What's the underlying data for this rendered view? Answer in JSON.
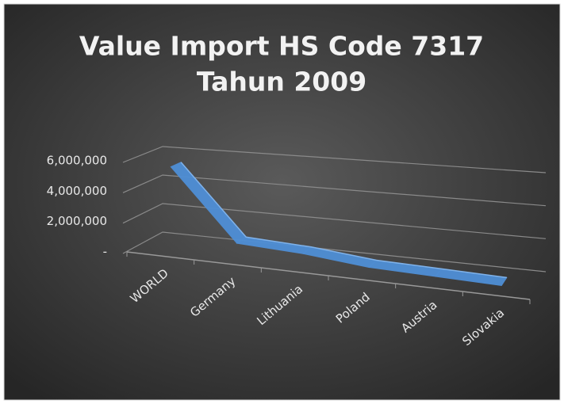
{
  "chart_data": {
    "type": "line3d",
    "title": [
      "Value Import HS Code 7317",
      "Tahun 2009"
    ],
    "categories": [
      "WORLD",
      "Germany",
      "Lithuania",
      "Poland",
      "Austria",
      "Slovakia"
    ],
    "values": [
      5500000,
      900000,
      700000,
      300000,
      200000,
      100000
    ],
    "color": "#4f8fd6",
    "ylim": [
      0,
      6000000
    ],
    "yticks": [
      {
        "value": 0,
        "label": "-"
      },
      {
        "value": 2000000,
        "label": "2,000,000"
      },
      {
        "value": 4000000,
        "label": "4,000,000"
      },
      {
        "value": 6000000,
        "label": "6,000,000"
      }
    ],
    "grid": true
  }
}
